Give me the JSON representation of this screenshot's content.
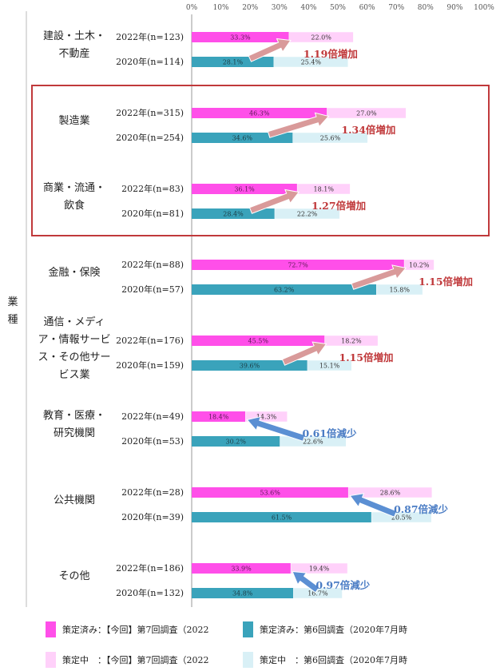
{
  "colors": {
    "y2022_done": "#ff4fe9",
    "y2022_mid": "#ffd1fa",
    "y2020_done": "#3aa3bb",
    "y2020_mid": "#d9f0f6",
    "increase_arrow": "#d99a9a",
    "increase_text": "#c0393b",
    "decrease_arrow": "#5b8fd3",
    "decrease_text": "#4a7cc4",
    "highlight_box": "#c0393b",
    "axis": "#999999"
  },
  "chart_data": {
    "type": "bar",
    "orientation": "horizontal",
    "stacked": true,
    "xlim": [
      0,
      100
    ],
    "x_ticks": [
      "0%",
      "10%",
      "20%",
      "30%",
      "40%",
      "50%",
      "60%",
      "70%",
      "80%",
      "90%",
      "100%"
    ],
    "ylabel": "業種",
    "categories": [
      {
        "label_lines": [
          "建設・土木・",
          "不動産"
        ],
        "rows": [
          {
            "label": "2022年(n=123)",
            "year": "2022",
            "done": 33.3,
            "mid": 22.0,
            "done_label": "33.3%",
            "mid_label": "22.0%"
          },
          {
            "label": "2020年(n=114)",
            "year": "2020",
            "done": 28.1,
            "mid": 25.4,
            "done_label": "28.1%",
            "mid_label": "25.4%"
          }
        ],
        "annotation": {
          "text": "1.19倍増加",
          "direction": "up"
        }
      },
      {
        "label_lines": [
          "製造業"
        ],
        "rows": [
          {
            "label": "2022年(n=315)",
            "year": "2022",
            "done": 46.3,
            "mid": 27.0,
            "done_label": "46.3%",
            "mid_label": "27.0%"
          },
          {
            "label": "2020年(n=254)",
            "year": "2020",
            "done": 34.6,
            "mid": 25.6,
            "done_label": "34.6%",
            "mid_label": "25.6%"
          }
        ],
        "annotation": {
          "text": "1.34倍増加",
          "direction": "up"
        }
      },
      {
        "label_lines": [
          "商業・流通・",
          "飲食"
        ],
        "rows": [
          {
            "label": "2022年(n=83)",
            "year": "2022",
            "done": 36.1,
            "mid": 18.1,
            "done_label": "36.1%",
            "mid_label": "18.1%"
          },
          {
            "label": "2020年(n=81)",
            "year": "2020",
            "done": 28.4,
            "mid": 22.2,
            "done_label": "28.4%",
            "mid_label": "22.2%"
          }
        ],
        "annotation": {
          "text": "1.27倍増加",
          "direction": "up"
        }
      },
      {
        "label_lines": [
          "金融・保険"
        ],
        "rows": [
          {
            "label": "2022年(n=88)",
            "year": "2022",
            "done": 72.7,
            "mid": 10.2,
            "done_label": "72.7%",
            "mid_label": "10.2%"
          },
          {
            "label": "2020年(n=57)",
            "year": "2020",
            "done": 63.2,
            "mid": 15.8,
            "done_label": "63.2%",
            "mid_label": "15.8%"
          }
        ],
        "annotation": {
          "text": "1.15倍増加",
          "direction": "up"
        }
      },
      {
        "label_lines": [
          "通信・メディ",
          "ア・情報サービ",
          "ス・その他サー",
          "ビス業"
        ],
        "rows": [
          {
            "label": "2022年(n=176)",
            "year": "2022",
            "done": 45.5,
            "mid": 18.2,
            "done_label": "45.5%",
            "mid_label": "18.2%"
          },
          {
            "label": "2020年(n=159)",
            "year": "2020",
            "done": 39.6,
            "mid": 15.1,
            "done_label": "39.6%",
            "mid_label": "15.1%"
          }
        ],
        "annotation": {
          "text": "1.15倍増加",
          "direction": "up"
        }
      },
      {
        "label_lines": [
          "教育・医療・",
          "研究機関"
        ],
        "rows": [
          {
            "label": "2022年(n=49)",
            "year": "2022",
            "done": 18.4,
            "mid": 14.3,
            "done_label": "18.4%",
            "mid_label": "14.3%"
          },
          {
            "label": "2020年(n=53)",
            "year": "2020",
            "done": 30.2,
            "mid": 22.6,
            "done_label": "30.2%",
            "mid_label": "22.6%"
          }
        ],
        "annotation": {
          "text": "0.61倍減少",
          "direction": "down"
        }
      },
      {
        "label_lines": [
          "公共機関"
        ],
        "rows": [
          {
            "label": "2022年(n=28)",
            "year": "2022",
            "done": 53.6,
            "mid": 28.6,
            "done_label": "53.6%",
            "mid_label": "28.6%"
          },
          {
            "label": "2020年(n=39)",
            "year": "2020",
            "done": 61.5,
            "mid": 20.5,
            "done_label": "61.5%",
            "mid_label": "20.5%"
          }
        ],
        "annotation": {
          "text": "0.87倍減少",
          "direction": "down"
        }
      },
      {
        "label_lines": [
          "その他"
        ],
        "rows": [
          {
            "label": "2022年(n=186)",
            "year": "2022",
            "done": 33.9,
            "mid": 19.4,
            "done_label": "33.9%",
            "mid_label": "19.4%"
          },
          {
            "label": "2020年(n=132)",
            "year": "2020",
            "done": 34.8,
            "mid": 16.7,
            "done_label": "34.8%",
            "mid_label": "16.7%"
          }
        ],
        "annotation": {
          "text": "0.97倍減少",
          "direction": "down"
        }
      }
    ],
    "highlighted_categories": [
      1,
      2
    ],
    "legend": [
      {
        "label": "策定済み：【今回】第7回調査（2022",
        "color_key": "y2022_done"
      },
      {
        "label": "策定済み：第6回調査（2020年7月時",
        "color_key": "y2020_done"
      },
      {
        "label": "策定中　：【今回】第7回調査（2022",
        "color_key": "y2022_mid"
      },
      {
        "label": "策定中　：第6回調査（2020年7月時",
        "color_key": "y2020_mid"
      }
    ],
    "legend_placement": "bottom"
  }
}
